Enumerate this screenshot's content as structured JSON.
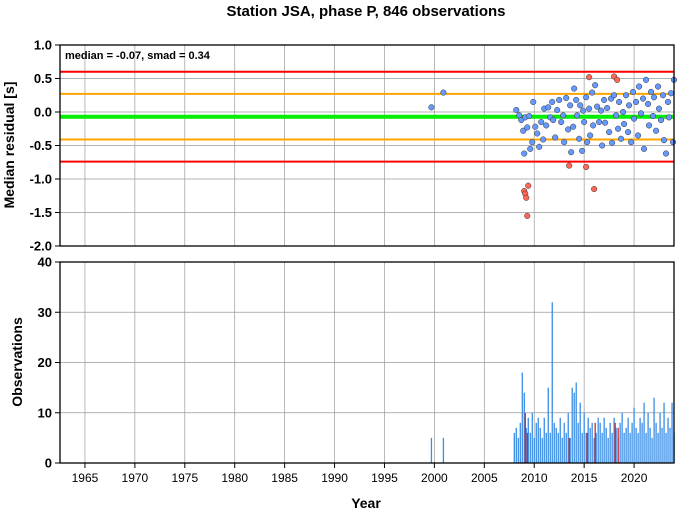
{
  "figure": {
    "title": "Station JSA, phase P, 846 observations"
  },
  "chart_data": [
    {
      "type": "scatter",
      "name": "residual-panel",
      "ylabel": "Median residual [s]",
      "ylim": [
        -2.0,
        1.0
      ],
      "xlim": [
        1962.5,
        2024.0
      ],
      "y_ticks": [
        "1.0",
        "0.5",
        "0.0",
        "-0.5",
        "-1.0",
        "-1.5",
        "-2.0"
      ],
      "y_tick_values": [
        1.0,
        0.5,
        0.0,
        -0.5,
        -1.0,
        -1.5,
        -2.0
      ],
      "grid": true,
      "annotation": "median = -0.07, smad = 0.34",
      "reference_lines": [
        {
          "y": 0.6,
          "color": "#ff0000"
        },
        {
          "y": 0.27,
          "color": "#ffa500"
        },
        {
          "y": -0.07,
          "color": "#00ee00"
        },
        {
          "y": -0.41,
          "color": "#ffa500"
        },
        {
          "y": -0.74,
          "color": "#ff0000"
        }
      ],
      "series": [
        {
          "color": "#6699ff",
          "points": [
            [
              1999.7,
              0.07
            ],
            [
              2000.9,
              0.29
            ],
            [
              2008.2,
              0.03
            ],
            [
              2008.5,
              -0.05
            ],
            [
              2008.7,
              -0.12
            ],
            [
              2008.9,
              -0.28
            ],
            [
              2009.0,
              -0.62
            ],
            [
              2009.1,
              -0.08
            ],
            [
              2009.3,
              -0.23
            ],
            [
              2009.5,
              -0.06
            ],
            [
              2009.6,
              -0.55
            ],
            [
              2009.8,
              -0.45
            ],
            [
              2009.9,
              0.15
            ],
            [
              2010.1,
              -0.22
            ],
            [
              2010.3,
              -0.32
            ],
            [
              2010.5,
              -0.52
            ],
            [
              2010.7,
              -0.15
            ],
            [
              2010.9,
              -0.41
            ],
            [
              2011.0,
              0.05
            ],
            [
              2011.2,
              -0.2
            ],
            [
              2011.4,
              0.07
            ],
            [
              2011.6,
              -0.08
            ],
            [
              2011.8,
              0.15
            ],
            [
              2011.9,
              -0.12
            ],
            [
              2012.1,
              -0.38
            ],
            [
              2012.3,
              0.03
            ],
            [
              2012.5,
              0.18
            ],
            [
              2012.7,
              -0.15
            ],
            [
              2012.9,
              -0.05
            ],
            [
              2013.0,
              -0.45
            ],
            [
              2013.2,
              0.21
            ],
            [
              2013.4,
              -0.26
            ],
            [
              2013.6,
              0.1
            ],
            [
              2013.7,
              -0.6
            ],
            [
              2013.9,
              -0.22
            ],
            [
              2014.0,
              0.35
            ],
            [
              2014.2,
              0.18
            ],
            [
              2014.3,
              -0.05
            ],
            [
              2014.5,
              -0.4
            ],
            [
              2014.6,
              0.1
            ],
            [
              2014.8,
              -0.58
            ],
            [
              2014.9,
              0.02
            ],
            [
              2015.0,
              -0.15
            ],
            [
              2015.2,
              0.22
            ],
            [
              2015.3,
              -0.45
            ],
            [
              2015.5,
              0.05
            ],
            [
              2015.6,
              -0.35
            ],
            [
              2015.8,
              0.29
            ],
            [
              2015.9,
              -0.2
            ],
            [
              2016.1,
              0.4
            ],
            [
              2016.3,
              0.08
            ],
            [
              2016.5,
              -0.15
            ],
            [
              2016.7,
              0.02
            ],
            [
              2016.8,
              -0.5
            ],
            [
              2017.0,
              0.18
            ],
            [
              2017.1,
              -0.16
            ],
            [
              2017.3,
              0.06
            ],
            [
              2017.5,
              -0.3
            ],
            [
              2017.7,
              0.2
            ],
            [
              2017.8,
              -0.46
            ],
            [
              2018.0,
              0.25
            ],
            [
              2018.2,
              -0.05
            ],
            [
              2018.4,
              -0.25
            ],
            [
              2018.5,
              0.15
            ],
            [
              2018.7,
              -0.4
            ],
            [
              2018.9,
              0.0
            ],
            [
              2019.0,
              -0.18
            ],
            [
              2019.2,
              0.25
            ],
            [
              2019.4,
              -0.3
            ],
            [
              2019.5,
              0.1
            ],
            [
              2019.7,
              -0.45
            ],
            [
              2019.9,
              0.3
            ],
            [
              2020.0,
              -0.1
            ],
            [
              2020.2,
              0.15
            ],
            [
              2020.4,
              -0.35
            ],
            [
              2020.5,
              0.38
            ],
            [
              2020.7,
              -0.02
            ],
            [
              2020.9,
              0.2
            ],
            [
              2021.0,
              -0.55
            ],
            [
              2021.2,
              0.48
            ],
            [
              2021.4,
              0.12
            ],
            [
              2021.5,
              -0.2
            ],
            [
              2021.7,
              0.3
            ],
            [
              2021.9,
              -0.06
            ],
            [
              2022.0,
              0.22
            ],
            [
              2022.2,
              -0.28
            ],
            [
              2022.4,
              0.38
            ],
            [
              2022.5,
              0.05
            ],
            [
              2022.7,
              -0.12
            ],
            [
              2022.9,
              0.25
            ],
            [
              2023.0,
              -0.42
            ],
            [
              2023.2,
              -0.62
            ],
            [
              2023.4,
              0.15
            ],
            [
              2023.5,
              -0.08
            ],
            [
              2023.7,
              0.28
            ],
            [
              2023.9,
              -0.45
            ],
            [
              2024.0,
              0.48
            ]
          ]
        },
        {
          "color": "#ff6655",
          "points": [
            [
              2009.0,
              -1.18
            ],
            [
              2009.1,
              -1.22
            ],
            [
              2009.2,
              -1.28
            ],
            [
              2009.4,
              -1.1
            ],
            [
              2009.3,
              -1.55
            ],
            [
              2013.5,
              -0.8
            ],
            [
              2015.2,
              -0.82
            ],
            [
              2015.5,
              0.52
            ],
            [
              2016.0,
              -1.15
            ],
            [
              2018.0,
              0.53
            ],
            [
              2018.3,
              0.48
            ]
          ]
        }
      ]
    },
    {
      "type": "bar",
      "name": "observations-panel",
      "xlabel": "Year",
      "ylabel": "Observations",
      "ylim": [
        0,
        40
      ],
      "xlim": [
        1962.5,
        2024.0
      ],
      "y_ticks": [
        "40",
        "30",
        "20",
        "10",
        "0"
      ],
      "y_tick_values": [
        40,
        30,
        20,
        10,
        0
      ],
      "x_ticks": [
        "1965",
        "1970",
        "1975",
        "1980",
        "1985",
        "1990",
        "1995",
        "2000",
        "2005",
        "2010",
        "2015",
        "2020"
      ],
      "x_tick_values": [
        1965,
        1970,
        1975,
        1980,
        1985,
        1990,
        1995,
        2000,
        2005,
        2010,
        2015,
        2020
      ],
      "grid": true,
      "series": [
        {
          "color": "#3a8ee6",
          "bars": [
            [
              1999.7,
              5
            ],
            [
              2000.9,
              5
            ],
            [
              2008.0,
              6
            ],
            [
              2008.2,
              7
            ],
            [
              2008.4,
              5
            ],
            [
              2008.6,
              8
            ],
            [
              2008.8,
              18
            ],
            [
              2009.0,
              14
            ],
            [
              2009.2,
              7
            ],
            [
              2009.4,
              9
            ],
            [
              2009.6,
              6
            ],
            [
              2009.8,
              10
            ],
            [
              2010.0,
              5
            ],
            [
              2010.2,
              8
            ],
            [
              2010.4,
              9
            ],
            [
              2010.6,
              7
            ],
            [
              2010.8,
              5
            ],
            [
              2011.0,
              9
            ],
            [
              2011.2,
              6
            ],
            [
              2011.4,
              15
            ],
            [
              2011.6,
              6
            ],
            [
              2011.8,
              32
            ],
            [
              2012.0,
              8
            ],
            [
              2012.2,
              7
            ],
            [
              2012.4,
              6
            ],
            [
              2012.6,
              9
            ],
            [
              2012.8,
              5
            ],
            [
              2013.0,
              8
            ],
            [
              2013.2,
              6
            ],
            [
              2013.4,
              10
            ],
            [
              2013.6,
              5
            ],
            [
              2013.8,
              15
            ],
            [
              2014.0,
              14
            ],
            [
              2014.2,
              16
            ],
            [
              2014.4,
              8
            ],
            [
              2014.6,
              12
            ],
            [
              2014.8,
              6
            ],
            [
              2015.0,
              10
            ],
            [
              2015.2,
              6
            ],
            [
              2015.4,
              9
            ],
            [
              2015.6,
              7
            ],
            [
              2015.8,
              8
            ],
            [
              2016.0,
              5
            ],
            [
              2016.2,
              6
            ],
            [
              2016.4,
              9
            ],
            [
              2016.6,
              8
            ],
            [
              2016.8,
              6
            ],
            [
              2017.0,
              9
            ],
            [
              2017.2,
              7
            ],
            [
              2017.4,
              5
            ],
            [
              2017.6,
              8
            ],
            [
              2017.8,
              6
            ],
            [
              2018.0,
              9
            ],
            [
              2018.2,
              7
            ],
            [
              2018.4,
              5
            ],
            [
              2018.6,
              8
            ],
            [
              2018.8,
              10
            ],
            [
              2019.0,
              6
            ],
            [
              2019.2,
              7
            ],
            [
              2019.4,
              9
            ],
            [
              2019.6,
              6
            ],
            [
              2019.8,
              8
            ],
            [
              2020.0,
              11
            ],
            [
              2020.2,
              7
            ],
            [
              2020.4,
              6
            ],
            [
              2020.6,
              9
            ],
            [
              2020.8,
              8
            ],
            [
              2021.0,
              12
            ],
            [
              2021.2,
              6
            ],
            [
              2021.4,
              10
            ],
            [
              2021.6,
              7
            ],
            [
              2021.8,
              5
            ],
            [
              2022.0,
              13
            ],
            [
              2022.2,
              8
            ],
            [
              2022.4,
              6
            ],
            [
              2022.6,
              10
            ],
            [
              2022.8,
              7
            ],
            [
              2023.0,
              12
            ],
            [
              2023.2,
              6
            ],
            [
              2023.4,
              9
            ],
            [
              2023.6,
              7
            ],
            [
              2023.8,
              12
            ],
            [
              2024.0,
              6
            ]
          ]
        },
        {
          "color": "#dd2222",
          "bars": [
            [
              2009.1,
              10
            ],
            [
              2009.3,
              6
            ],
            [
              2013.5,
              5
            ],
            [
              2015.3,
              6
            ],
            [
              2016.1,
              8
            ],
            [
              2018.1,
              8
            ],
            [
              2018.4,
              7
            ]
          ]
        }
      ]
    }
  ]
}
